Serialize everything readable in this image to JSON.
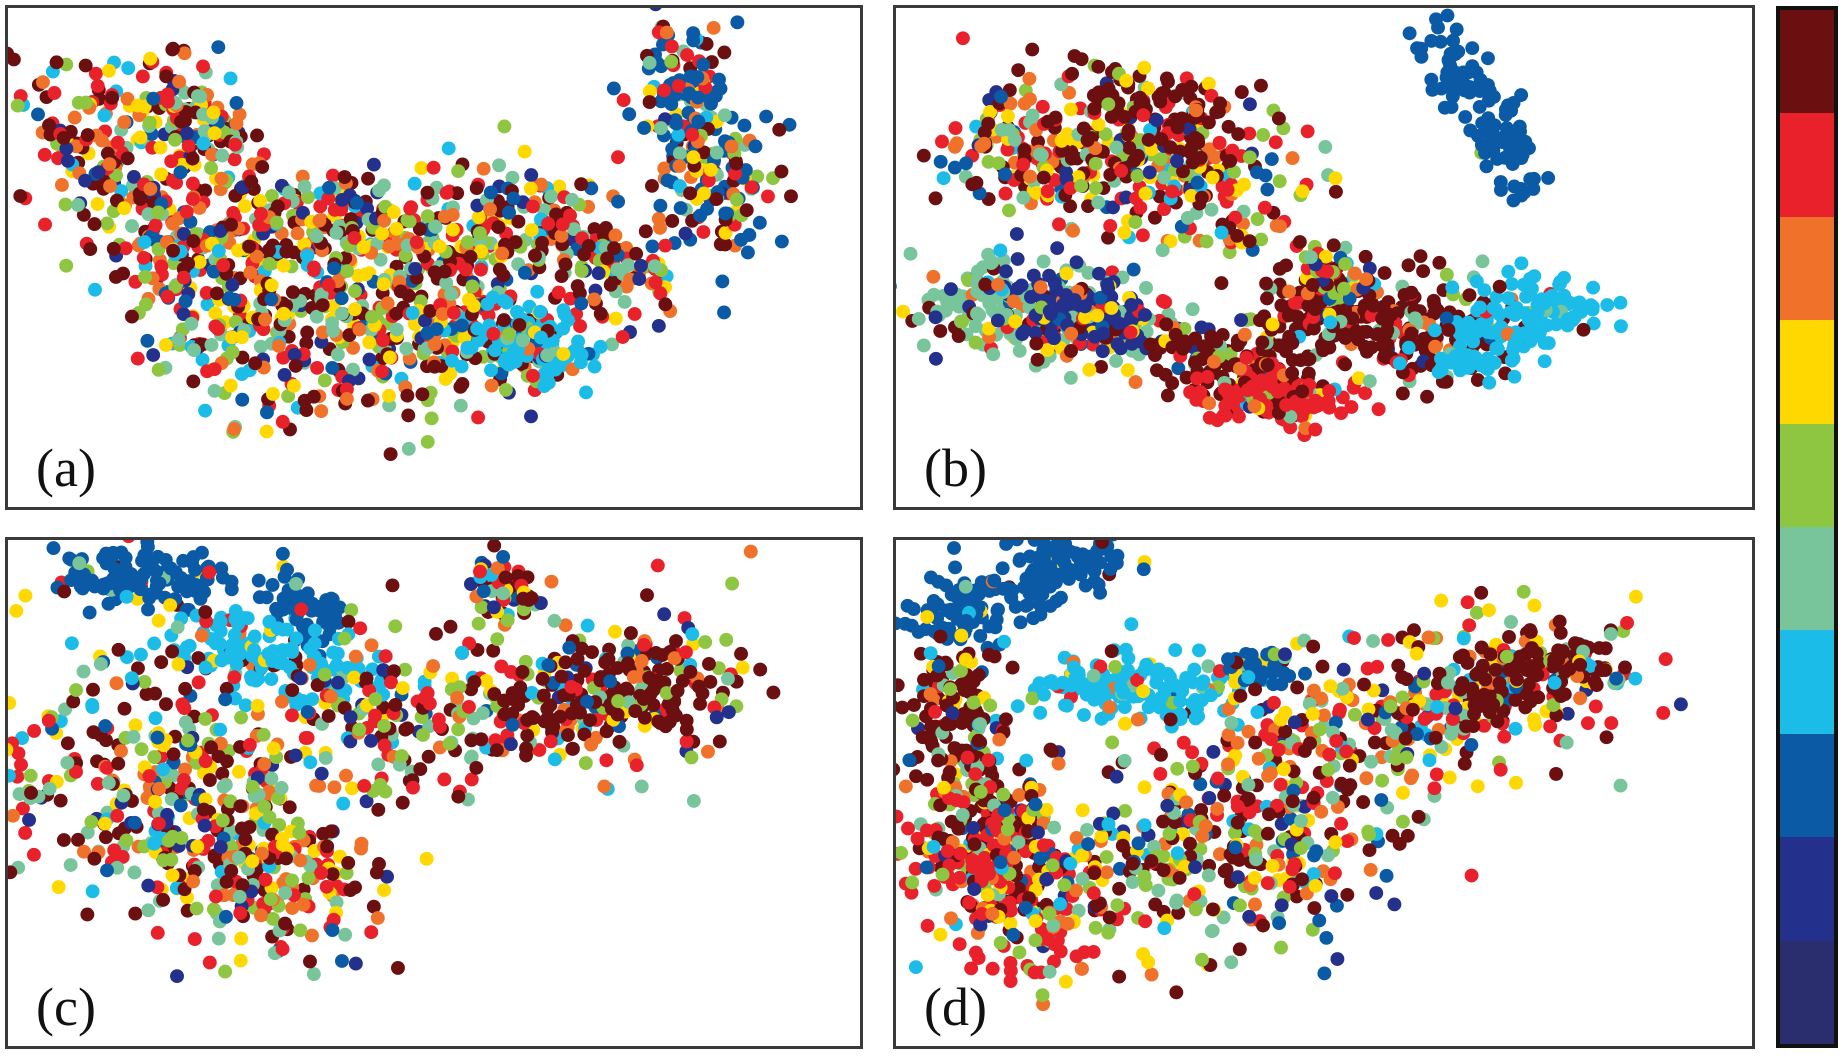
{
  "chart_data": [
    {
      "type": "scatter",
      "panel_label": "(a)"
    },
    {
      "type": "scatter",
      "panel_label": "(b)"
    },
    {
      "type": "scatter",
      "panel_label": "(c)"
    },
    {
      "type": "scatter",
      "panel_label": "(d)"
    }
  ],
  "colorbar": {
    "colors": [
      "#6b0f10",
      "#e8212a",
      "#f0722a",
      "#ffd800",
      "#8ec641",
      "#78c59b",
      "#1bbde8",
      "#0b5aa6",
      "#23318c",
      "#2b2e6e"
    ]
  }
}
